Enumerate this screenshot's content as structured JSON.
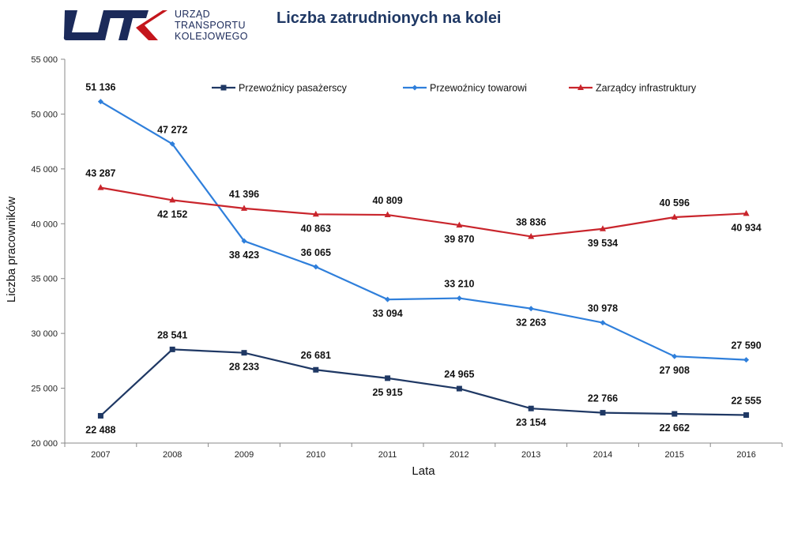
{
  "logo": {
    "mark": "UTK",
    "lines": [
      "URZĄD",
      "TRANSPORTU",
      "KOLEJOWEGO"
    ],
    "colors": {
      "navy": "#1b2a5a",
      "red": "#c4161c"
    }
  },
  "chart_data": {
    "type": "line",
    "title": "Liczba zatrudnionych na kolei",
    "xlabel": "Lata",
    "ylabel": "Liczba pracowników",
    "categories": [
      "2007",
      "2008",
      "2009",
      "2010",
      "2011",
      "2012",
      "2013",
      "2014",
      "2015",
      "2016"
    ],
    "ylim": [
      20000,
      55000
    ],
    "yticks": [
      20000,
      25000,
      30000,
      35000,
      40000,
      45000,
      50000,
      55000
    ],
    "ytick_labels": [
      "20 000",
      "25 000",
      "30 000",
      "35 000",
      "40 000",
      "45 000",
      "50 000",
      "55 000"
    ],
    "grid": false,
    "legend_position": "top",
    "series": [
      {
        "name": "Przewoźnicy pasażerscy",
        "color": "#1f3864",
        "marker": "square",
        "values": [
          22488,
          28541,
          28233,
          26681,
          25915,
          24965,
          23154,
          22766,
          22662,
          22555
        ],
        "labels": [
          "22 488",
          "28 541",
          "28 233",
          "26 681",
          "25 915",
          "24 965",
          "23 154",
          "22 766",
          "22 662",
          "22 555"
        ],
        "label_side": [
          "below",
          "above",
          "below",
          "above",
          "below",
          "above",
          "below",
          "above",
          "below",
          "above"
        ]
      },
      {
        "name": "Przewoźnicy towarowi",
        "color": "#2f7fdb",
        "marker": "diamond",
        "values": [
          51136,
          47272,
          38423,
          36065,
          33094,
          33210,
          32263,
          30978,
          27908,
          27590
        ],
        "labels": [
          "51 136",
          "47 272",
          "38 423",
          "36 065",
          "33 094",
          "33 210",
          "32 263",
          "30 978",
          "27 908",
          "27 590"
        ],
        "label_side": [
          "above",
          "above",
          "below",
          "above",
          "below",
          "above",
          "below",
          "above",
          "below",
          "above"
        ]
      },
      {
        "name": "Zarządcy infrastruktury",
        "color": "#c9252c",
        "marker": "triangle",
        "values": [
          43287,
          42152,
          41396,
          40863,
          40809,
          39870,
          38836,
          39534,
          40596,
          40934
        ],
        "labels": [
          "43 287",
          "42 152",
          "41 396",
          "40 863",
          "40 809",
          "39 870",
          "38 836",
          "39 534",
          "40 596",
          "40 934"
        ],
        "label_side": [
          "above",
          "below",
          "above",
          "below",
          "above",
          "below",
          "above",
          "below",
          "above",
          "below"
        ]
      }
    ]
  }
}
